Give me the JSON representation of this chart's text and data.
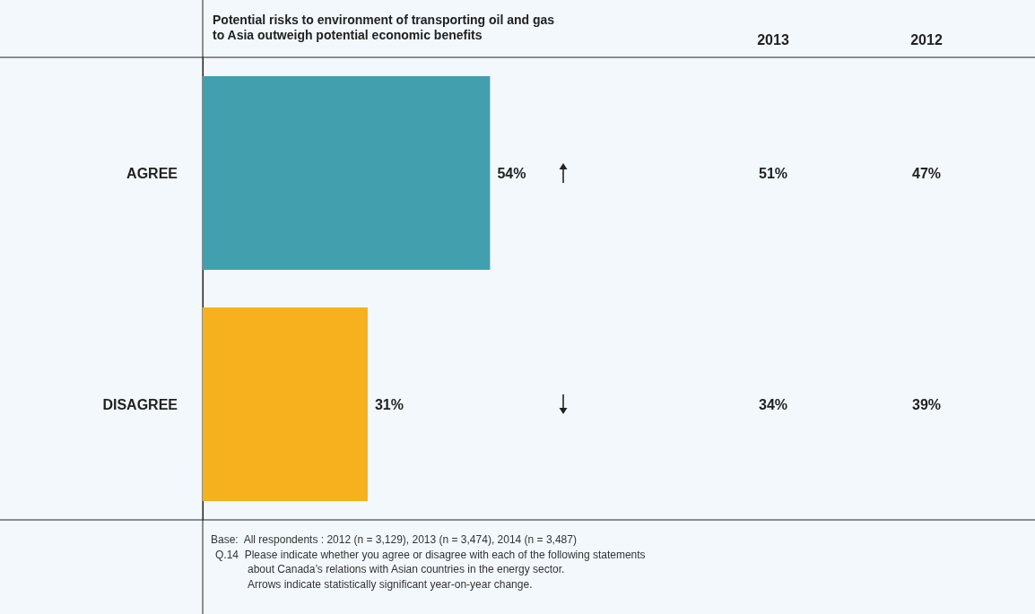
{
  "chart_data": {
    "type": "bar",
    "orientation": "horizontal",
    "title": "Potential risks to environment of transporting oil and gas\nto Asia outweigh potential economic benefits",
    "categories": [
      "AGREE",
      "DISAGREE"
    ],
    "values": [
      54,
      31
    ],
    "colors": [
      "#429fae",
      "#f7b01e"
    ],
    "value_labels": [
      "54%",
      "31%"
    ],
    "annotations": [
      "2013",
      "2012",
      "51%",
      "47%",
      "34%",
      "39%",
      "Base:  All respondents : 2012 (n = 3,129), 2013 (n = 3,474), 2014 (n = 3,487)",
      "Q.14  Please indicate whether you agree or disagree with each of the following statements\nabout Canada’s relations with Asian countries in the energy sector.\nArrows indicate statistically significant year-on-year change."
    ]
  }
}
